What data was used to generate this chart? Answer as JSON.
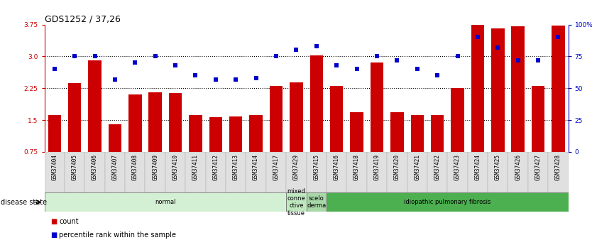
{
  "title": "GDS1252 / 37,26",
  "samples": [
    "GSM37404",
    "GSM37405",
    "GSM37406",
    "GSM37407",
    "GSM37408",
    "GSM37409",
    "GSM37410",
    "GSM37411",
    "GSM37412",
    "GSM37413",
    "GSM37414",
    "GSM37417",
    "GSM37429",
    "GSM37415",
    "GSM37416",
    "GSM37418",
    "GSM37419",
    "GSM37420",
    "GSM37421",
    "GSM37422",
    "GSM37423",
    "GSM37424",
    "GSM37425",
    "GSM37426",
    "GSM37427",
    "GSM37428"
  ],
  "bar_values": [
    1.62,
    2.37,
    2.9,
    1.4,
    2.1,
    2.15,
    2.13,
    1.62,
    1.57,
    1.58,
    1.62,
    2.3,
    2.38,
    3.02,
    2.3,
    1.68,
    2.85,
    1.68,
    1.62,
    1.62,
    2.25,
    3.75,
    3.65,
    3.7,
    2.3,
    3.72
  ],
  "dot_values": [
    65,
    75,
    75,
    57,
    70,
    75,
    68,
    60,
    57,
    57,
    58,
    75,
    80,
    83,
    68,
    65,
    75,
    72,
    65,
    60,
    75,
    90,
    82,
    72,
    72,
    90
  ],
  "disease_groups": [
    {
      "label": "normal",
      "start": 0,
      "end": 12,
      "color": "#d4f0d4"
    },
    {
      "label": "mixed\nconne\nctive\ntissue",
      "start": 12,
      "end": 13,
      "color": "#c0e8c0"
    },
    {
      "label": "scelo\nderma",
      "start": 13,
      "end": 14,
      "color": "#a8d8a8"
    },
    {
      "label": "idiopathic pulmonary fibrosis",
      "start": 14,
      "end": 26,
      "color": "#4caf50"
    }
  ],
  "ylim_left": [
    0.75,
    3.75
  ],
  "ylim_right": [
    0,
    100
  ],
  "yticks_left": [
    0.75,
    1.5,
    2.25,
    3.0,
    3.75
  ],
  "yticks_right": [
    0,
    25,
    50,
    75,
    100
  ],
  "bar_color": "#cc0000",
  "dot_color": "#0000cc",
  "background_color": "#ffffff",
  "title_fontsize": 9,
  "tick_fontsize": 6.5,
  "disease_state_label": "disease state"
}
